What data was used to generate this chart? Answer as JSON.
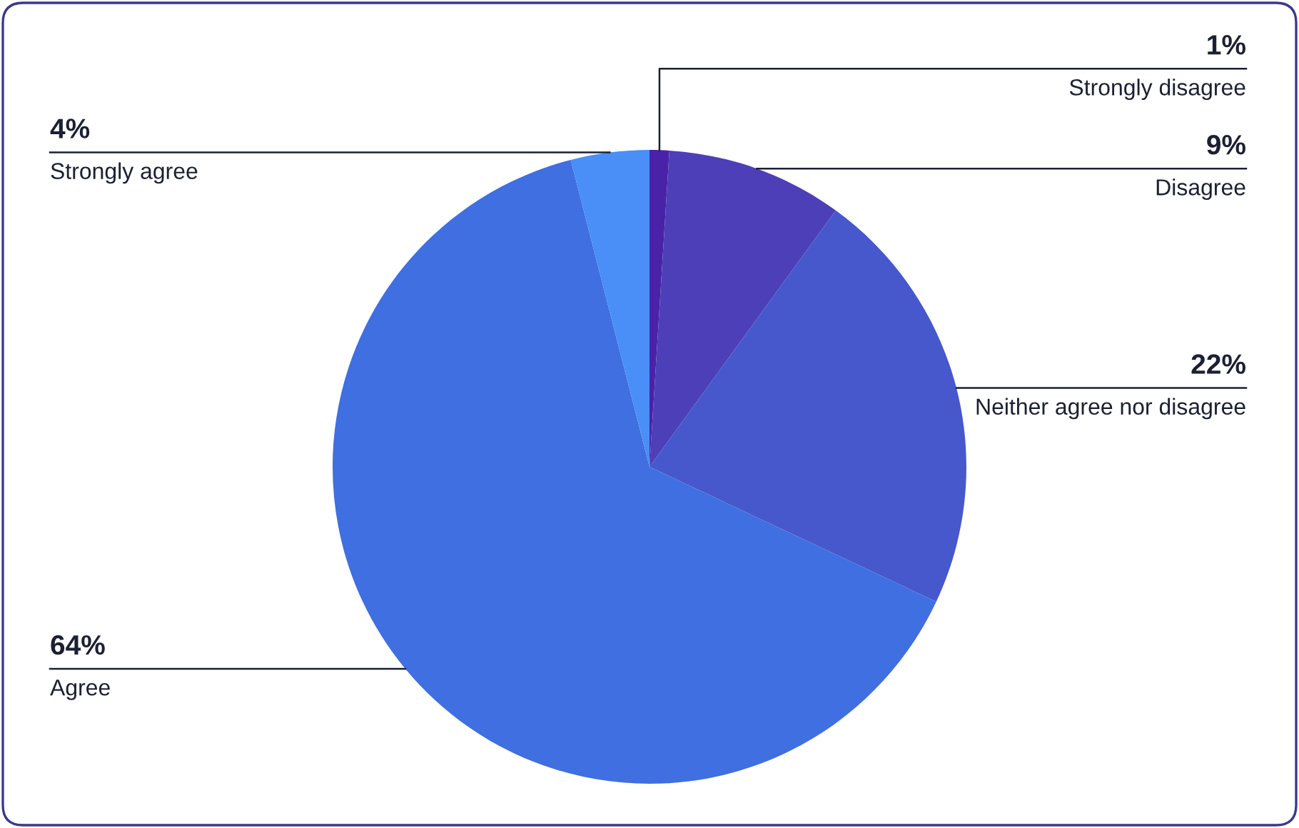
{
  "chart_data": {
    "type": "pie",
    "categories": [
      "Strongly disagree",
      "Disagree",
      "Neither agree nor disagree",
      "Agree",
      "Strongly agree"
    ],
    "values": [
      1,
      9,
      22,
      64,
      4
    ],
    "value_labels": [
      "1%",
      "9%",
      "22%",
      "64%",
      "4%"
    ],
    "colors": [
      "#4a22a8",
      "#4d3fb8",
      "#4658cc",
      "#3f6fe0",
      "#4a8ef7"
    ]
  }
}
